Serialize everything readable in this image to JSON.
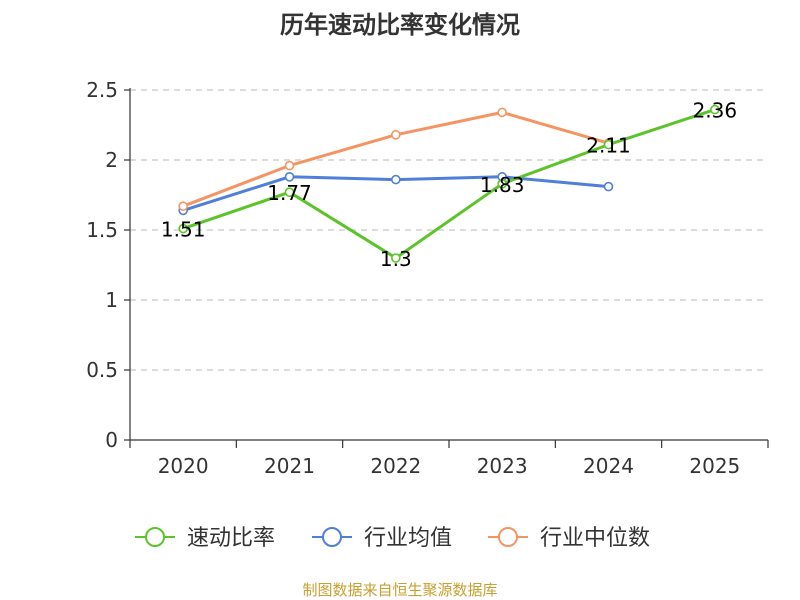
{
  "chart_data": {
    "type": "line",
    "title": "历年速动比率变化情况",
    "categories": [
      "2020",
      "2021",
      "2022",
      "2023",
      "2024",
      "2025"
    ],
    "ylim": [
      0,
      2.5
    ],
    "yticks": [
      "0",
      "0.5",
      "1",
      "1.5",
      "2",
      "2.5"
    ],
    "ytick_values": [
      0,
      0.5,
      1,
      1.5,
      2,
      2.5
    ],
    "grid": true,
    "legend_position": "bottom",
    "series": [
      {
        "name": "速动比率",
        "color": "#5cc42a",
        "values": [
          1.51,
          1.77,
          1.3,
          1.83,
          2.11,
          2.36
        ],
        "labels": [
          "1.51",
          "1.77",
          "1.3",
          "1.83",
          "2.11",
          "2.36"
        ]
      },
      {
        "name": "行业均值",
        "color": "#4f7fd8",
        "values": [
          1.64,
          1.88,
          1.86,
          1.88,
          1.81,
          null
        ]
      },
      {
        "name": "行业中位数",
        "color": "#f59463",
        "values": [
          1.67,
          1.96,
          2.18,
          2.34,
          2.12,
          null
        ]
      }
    ]
  },
  "source": "制图数据来自恒生聚源数据库"
}
